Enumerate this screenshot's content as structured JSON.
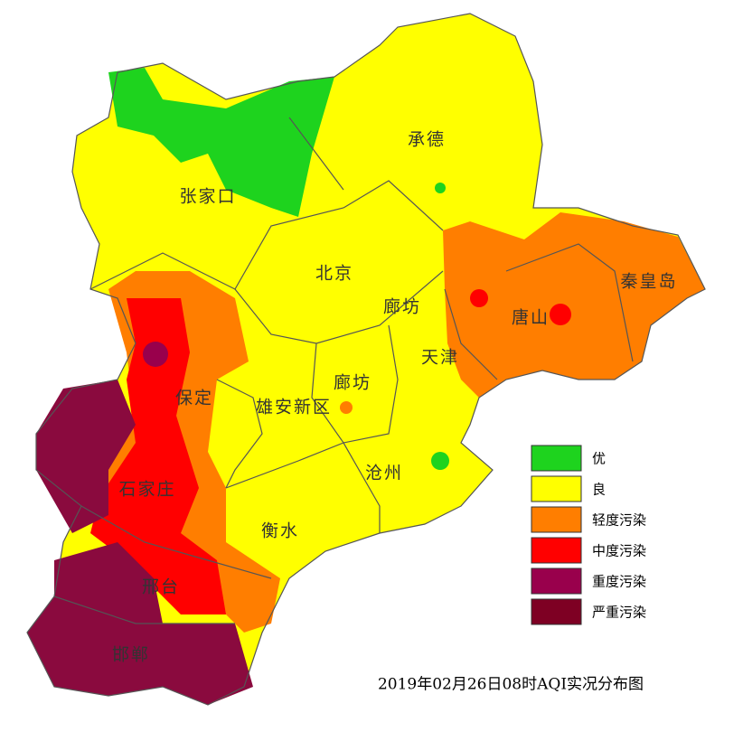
{
  "map": {
    "cities": [
      "张家口",
      "承德",
      "北京",
      "廊坊",
      "秦皇岛",
      "唐山",
      "天津",
      "廊坊",
      "保定",
      "雄安新区",
      "沧州",
      "石家庄",
      "衡水",
      "邢台",
      "邯郸"
    ]
  },
  "legend": [
    {
      "label": "优",
      "color": "#1ed31e"
    },
    {
      "label": "良",
      "color": "#ffff00"
    },
    {
      "label": "轻度污染",
      "color": "#ff7e00"
    },
    {
      "label": "中度污染",
      "color": "#ff0000"
    },
    {
      "label": "重度污染",
      "color": "#99004c"
    },
    {
      "label": "严重污染",
      "color": "#7e0023"
    }
  ],
  "caption": "2019年02月26日08时AQI实况分布图"
}
